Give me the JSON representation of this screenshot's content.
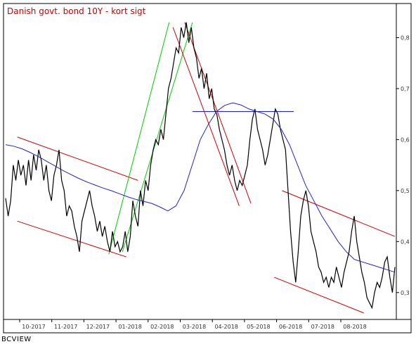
{
  "chart_data": {
    "type": "line",
    "title": "Danish govt. bond 10Y - kort sigt",
    "x_tick_labels": [
      "10-2017",
      "11-2017",
      "12-2017",
      "01-2018",
      "02-2018",
      "03-2018",
      "04-2018",
      "05-2018",
      "06-2018",
      "07-2018",
      "08-2018"
    ],
    "y_tick_labels": [
      "0,3",
      "0,4",
      "0,5",
      "0,6",
      "0,7",
      "0,8"
    ],
    "y_ticks": [
      0.3,
      0.4,
      0.5,
      0.6,
      0.7,
      0.8
    ],
    "ylim": [
      0.25,
      0.86
    ],
    "grid": false,
    "series": [
      {
        "color": "#000000",
        "values": [
          0.485,
          0.45,
          0.48,
          0.55,
          0.52,
          0.56,
          0.53,
          0.55,
          0.51,
          0.56,
          0.52,
          0.57,
          0.54,
          0.58,
          0.56,
          0.52,
          0.55,
          0.5,
          0.48,
          0.53,
          0.55,
          0.58,
          0.52,
          0.5,
          0.45,
          0.47,
          0.46,
          0.43,
          0.41,
          0.38,
          0.44,
          0.46,
          0.48,
          0.5,
          0.47,
          0.45,
          0.42,
          0.44,
          0.41,
          0.43,
          0.4,
          0.38,
          0.42,
          0.39,
          0.4,
          0.38,
          0.39,
          0.42,
          0.38,
          0.41,
          0.48,
          0.45,
          0.43,
          0.5,
          0.47,
          0.52,
          0.5,
          0.55,
          0.58,
          0.6,
          0.59,
          0.62,
          0.6,
          0.65,
          0.7,
          0.72,
          0.75,
          0.78,
          0.77,
          0.82,
          0.8,
          0.83,
          0.79,
          0.82,
          0.78,
          0.76,
          0.72,
          0.74,
          0.7,
          0.73,
          0.68,
          0.7,
          0.66,
          0.65,
          0.62,
          0.6,
          0.58,
          0.55,
          0.53,
          0.55,
          0.52,
          0.5,
          0.52,
          0.51,
          0.53,
          0.55,
          0.6,
          0.64,
          0.66,
          0.62,
          0.6,
          0.58,
          0.55,
          0.57,
          0.6,
          0.63,
          0.66,
          0.65,
          0.62,
          0.6,
          0.58,
          0.5,
          0.42,
          0.36,
          0.32,
          0.38,
          0.45,
          0.48,
          0.5,
          0.47,
          0.42,
          0.4,
          0.38,
          0.35,
          0.34,
          0.32,
          0.33,
          0.31,
          0.33,
          0.32,
          0.35,
          0.33,
          0.31,
          0.34,
          0.36,
          0.38,
          0.42,
          0.45,
          0.4,
          0.37,
          0.34,
          0.32,
          0.29,
          0.28,
          0.27,
          0.3,
          0.32,
          0.31,
          0.33,
          0.36,
          0.37,
          0.33,
          0.3,
          0.35
        ]
      },
      {
        "color": "#2222cc",
        "values": [
          0.59,
          0.587,
          0.582,
          0.575,
          0.567,
          0.558,
          0.549,
          0.54,
          0.532,
          0.524,
          0.517,
          0.511,
          0.505,
          0.5,
          0.494,
          0.488,
          0.483,
          0.479,
          0.475,
          0.468,
          0.46,
          0.47,
          0.5,
          0.55,
          0.6,
          0.63,
          0.655,
          0.667,
          0.672,
          0.668,
          0.66,
          0.655,
          0.65,
          0.64,
          0.62,
          0.59,
          0.55,
          0.51,
          0.48,
          0.45,
          0.425,
          0.4,
          0.38,
          0.365,
          0.36,
          0.355,
          0.35,
          0.345,
          0.34
        ]
      }
    ],
    "trend_lines": [
      {
        "color": "#cc0000",
        "from": [
          0.03,
          0.605
        ],
        "to": [
          0.34,
          0.52
        ]
      },
      {
        "color": "#cc0000",
        "from": [
          0.03,
          0.44
        ],
        "to": [
          0.31,
          0.37
        ]
      },
      {
        "color": "#00cc00",
        "from": [
          0.265,
          0.375
        ],
        "to": [
          0.42,
          0.83
        ]
      },
      {
        "color": "#00cc00",
        "from": [
          0.3,
          0.38
        ],
        "to": [
          0.48,
          0.83
        ]
      },
      {
        "color": "#cc0000",
        "from": [
          0.43,
          0.82
        ],
        "to": [
          0.6,
          0.47
        ]
      },
      {
        "color": "#cc0000",
        "from": [
          0.46,
          0.83
        ],
        "to": [
          0.63,
          0.475
        ]
      },
      {
        "color": "#2222cc",
        "from": [
          0.48,
          0.655
        ],
        "to": [
          0.74,
          0.655
        ]
      },
      {
        "color": "#cc0000",
        "from": [
          0.71,
          0.5
        ],
        "to": [
          1.0,
          0.41
        ]
      },
      {
        "color": "#cc0000",
        "from": [
          0.69,
          0.33
        ],
        "to": [
          0.92,
          0.26
        ]
      }
    ]
  },
  "brand_label": "BCVIEW"
}
